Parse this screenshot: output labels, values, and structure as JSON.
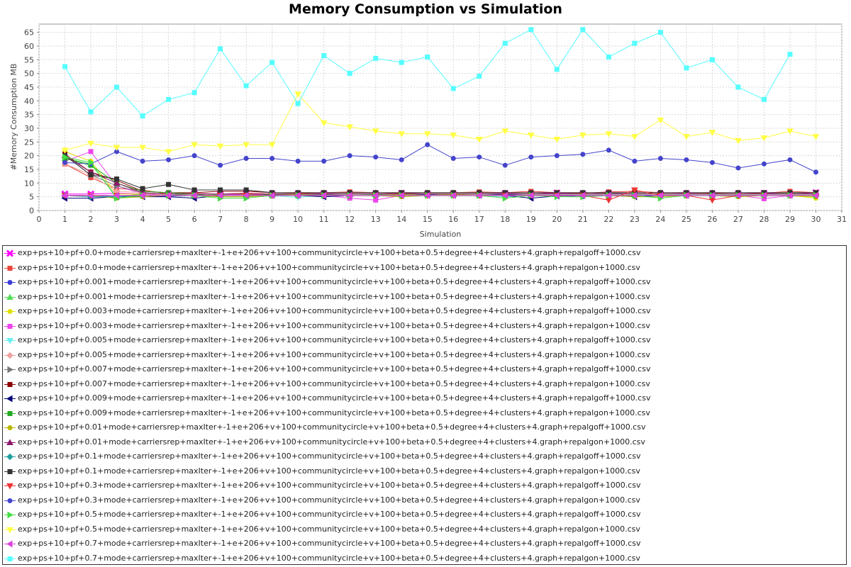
{
  "chart_data": {
    "type": "line",
    "title": "Memory Consumption vs Simulation",
    "xlabel": "Simulation",
    "ylabel": "#Memory Consumption MB",
    "xlim": [
      0,
      31
    ],
    "ylim": [
      0,
      68
    ],
    "xticks": [
      0,
      1,
      2,
      3,
      4,
      5,
      6,
      7,
      8,
      9,
      10,
      11,
      12,
      13,
      14,
      15,
      16,
      17,
      18,
      19,
      20,
      21,
      22,
      23,
      24,
      25,
      26,
      27,
      28,
      29,
      30,
      31
    ],
    "yticks": [
      0,
      5,
      10,
      15,
      20,
      25,
      30,
      35,
      40,
      45,
      50,
      55,
      60,
      65
    ],
    "grid": true,
    "legend_position": "bottom",
    "x": [
      1,
      2,
      3,
      4,
      5,
      6,
      7,
      8,
      9,
      10,
      11,
      12,
      13,
      14,
      15,
      16,
      17,
      18,
      19,
      20,
      21,
      22,
      23,
      24,
      25,
      26,
      27,
      28,
      29,
      30
    ],
    "series": [
      {
        "name": "exp+ps+10+pf+0.0+mode+carriersrep+maxIter+-1+e+206+v+100+communitycircle+v+100+beta+0.5+degree+4+clusters+4.graph+repalgoff+1000.csv",
        "color": "#ff00ff",
        "marker": "x",
        "values": [
          6,
          6,
          6.3,
          6,
          6,
          6.2,
          6,
          6.3,
          6,
          6,
          6.2,
          6,
          6,
          6.3,
          6,
          6,
          6,
          6.2,
          6,
          6.4,
          6,
          6.3,
          6,
          6,
          6.2,
          6,
          6,
          6.3,
          6,
          6.5
        ]
      },
      {
        "name": "exp+ps+10+pf+0.0+mode+carriersrep+maxIter+-1+e+206+v+100+communitycircle+v+100+beta+0.5+degree+4+clusters+4.graph+repalgon+1000.csv",
        "color": "#e8453c",
        "marker": "square",
        "values": [
          17,
          12,
          8,
          7.5,
          6,
          6.2,
          6,
          6.3,
          6,
          6.2,
          6.5,
          6.8,
          6.5,
          6.3,
          6.5,
          6.5,
          6.8,
          6.5,
          7,
          6.5,
          6.3,
          6.8,
          7,
          6.5,
          6.5,
          6.3,
          6.5,
          6.3,
          7,
          6.5
        ]
      },
      {
        "name": "exp+ps+10+pf+0.001+mode+carriersrep+maxIter+-1+e+206+v+100+communitycircle+v+100+beta+0.5+degree+4+clusters+4.graph+repalgoff+1000.csv",
        "color": "#3c3cd8",
        "marker": "circle",
        "values": [
          5.5,
          5.5,
          5,
          5,
          5.2,
          5.5,
          5.5,
          5.5,
          5.3,
          5.5,
          5,
          5.5,
          5.5,
          5.5,
          5.8,
          5.5,
          5.5,
          5.8,
          5.5,
          5.5,
          5,
          5.5,
          5.5,
          5.5,
          5.5,
          5.5,
          5.5,
          5.5,
          5.5,
          5.5
        ]
      },
      {
        "name": "exp+ps+10+pf+0.001+mode+carriersrep+maxIter+-1+e+206+v+100+communitycircle+v+100+beta+0.5+degree+4+clusters+4.graph+repalgon+1000.csv",
        "color": "#55dd55",
        "marker": "triangle-up",
        "values": [
          19,
          17,
          5,
          6,
          6,
          5.5,
          5.8,
          5.5,
          5.8,
          6,
          6,
          6,
          5.8,
          6,
          6,
          6,
          6,
          6,
          6,
          6,
          6,
          6.2,
          6,
          6,
          6,
          6,
          6,
          6,
          6.2,
          6
        ]
      },
      {
        "name": "exp+ps+10+pf+0.003+mode+carriersrep+maxIter+-1+e+206+v+100+communitycircle+v+100+beta+0.5+degree+4+clusters+4.graph+repalgoff+1000.csv",
        "color": "#e0e000",
        "marker": "circle",
        "values": [
          21.5,
          18,
          6,
          6,
          5.5,
          5.5,
          5.5,
          5.8,
          5.5,
          5.8,
          5.5,
          5.5,
          5.5,
          5.8,
          5.5,
          5.8,
          5.5,
          5.5,
          5.5,
          5.5,
          5.5,
          5.5,
          5.2,
          5.5,
          5.5,
          5.5,
          5.3,
          5.5,
          5.5,
          4.5
        ]
      },
      {
        "name": "exp+ps+10+pf+0.003+mode+carriersrep+maxIter+-1+e+206+v+100+communitycircle+v+100+beta+0.5+degree+4+clusters+4.graph+repalgon+1000.csv",
        "color": "#ee44ee",
        "marker": "square",
        "values": [
          18,
          21.5,
          9,
          6,
          5.5,
          5.5,
          5.5,
          6,
          5.5,
          5.5,
          5.5,
          4.5,
          3.8,
          5.5,
          5.5,
          5.5,
          5.5,
          5.5,
          5.5,
          5.5,
          5.5,
          5.5,
          5.5,
          5.5,
          5.5,
          5.5,
          5.5,
          4.3,
          5.5,
          5.5
        ]
      },
      {
        "name": "exp+ps+10+pf+0.005+mode+carriersrep+maxIter+-1+e+206+v+100+communitycircle+v+100+beta+0.5+degree+4+clusters+4.graph+repalgoff+1000.csv",
        "color": "#66eeee",
        "marker": "triangle-down",
        "values": [
          5.5,
          5.5,
          5.3,
          5.5,
          5.5,
          5.5,
          5.5,
          5.5,
          5.5,
          4.8,
          5.5,
          5.5,
          5.5,
          5.5,
          5.5,
          5.5,
          5.5,
          5,
          5.5,
          5.5,
          5.5,
          5.5,
          5.5,
          5.5,
          5.5,
          5.5,
          5.5,
          5.5,
          5.5,
          5.5
        ]
      },
      {
        "name": "exp+ps+10+pf+0.005+mode+carriersrep+maxIter+-1+e+206+v+100+communitycircle+v+100+beta+0.5+degree+4+clusters+4.graph+repalgon+1000.csv",
        "color": "#f0a0a0",
        "marker": "diamond",
        "values": [
          17,
          13,
          7,
          6.5,
          5.5,
          5.5,
          5.5,
          5.5,
          5.5,
          5.5,
          5.5,
          5.5,
          5.5,
          5.5,
          5.5,
          5.5,
          5.5,
          5.5,
          5.5,
          5.5,
          5.5,
          5.5,
          5.5,
          5.5,
          5.5,
          5.5,
          5.5,
          5.5,
          5.5,
          5.5
        ]
      },
      {
        "name": "exp+ps+10+pf+0.007+mode+carriersrep+maxIter+-1+e+206+v+100+communitycircle+v+100+beta+0.5+degree+4+clusters+4.graph+repalgoff+1000.csv",
        "color": "#777777",
        "marker": "triangle-right",
        "values": [
          20,
          13,
          9,
          6.5,
          6,
          6,
          6,
          6,
          5.8,
          6,
          5.8,
          6,
          6,
          6,
          6,
          6,
          6,
          6,
          6,
          6,
          6,
          6,
          6,
          6,
          6,
          6,
          6,
          6,
          6,
          6
        ]
      },
      {
        "name": "exp+ps+10+pf+0.007+mode+carriersrep+maxIter+-1+e+206+v+100+communitycircle+v+100+beta+0.5+degree+4+clusters+4.graph+repalgon+1000.csv",
        "color": "#8b0000",
        "marker": "square",
        "values": [
          20.5,
          14,
          11,
          7,
          6.5,
          6.5,
          7,
          7,
          6.5,
          6.5,
          6.5,
          6.5,
          6.5,
          6.5,
          6.5,
          6.5,
          6.5,
          6.5,
          6.5,
          6.5,
          6.5,
          6.5,
          6.5,
          6.5,
          6.5,
          6.5,
          6.5,
          6.5,
          6.5,
          6.5
        ]
      },
      {
        "name": "exp+ps+10+pf+0.009+mode+carriersrep+maxIter+-1+e+206+v+100+communitycircle+v+100+beta+0.5+degree+4+clusters+4.graph+repalgoff+1000.csv",
        "color": "#00007a",
        "marker": "triangle-left",
        "values": [
          4.5,
          4.5,
          5,
          5,
          5,
          4.5,
          5.5,
          5.5,
          5.5,
          5.5,
          5,
          5.5,
          5.5,
          5.5,
          5.5,
          5.5,
          5.5,
          5.5,
          4.5,
          5.3,
          5.5,
          5.5,
          5,
          5.5,
          5.5,
          5.5,
          5.5,
          5.5,
          5.5,
          5.5
        ]
      },
      {
        "name": "exp+ps+10+pf+0.009+mode+carriersrep+maxIter+-1+e+206+v+100+communitycircle+v+100+beta+0.5+degree+4+clusters+4.graph+repalgon+1000.csv",
        "color": "#22aa22",
        "marker": "square",
        "values": [
          19,
          16.5,
          10,
          7,
          6.5,
          6,
          5,
          5,
          6,
          6,
          6,
          6,
          6,
          6,
          6,
          6,
          6,
          6,
          6,
          6,
          6,
          6,
          6,
          6,
          6,
          6,
          6,
          6,
          6,
          6
        ]
      },
      {
        "name": "exp+ps+10+pf+0.01+mode+carriersrep+maxIter+-1+e+206+v+100+communitycircle+v+100+beta+0.5+degree+4+clusters+4.graph+repalgoff+1000.csv",
        "color": "#b8b800",
        "marker": "circle",
        "values": [
          5.5,
          5.5,
          4.5,
          5,
          5.5,
          5.5,
          5,
          5,
          5.5,
          5.5,
          5.5,
          5.5,
          5.5,
          5,
          5.5,
          5.5,
          5.5,
          5.5,
          5.5,
          5.5,
          5.5,
          5.5,
          5,
          5,
          5.5,
          5.5,
          5,
          5.5,
          5.5,
          5
        ]
      },
      {
        "name": "exp+ps+10+pf+0.01+mode+carriersrep+maxIter+-1+e+206+v+100+communitycircle+v+100+beta+0.5+degree+4+clusters+4.graph+repalgon+1000.csv",
        "color": "#8b1a6b",
        "marker": "triangle-up",
        "values": [
          20,
          14,
          10,
          6.5,
          6,
          6,
          6,
          6,
          6,
          6,
          6,
          6,
          6,
          6,
          6,
          6,
          6,
          6,
          6,
          6,
          6,
          6,
          6,
          6,
          6,
          6,
          6,
          6,
          6,
          6
        ]
      },
      {
        "name": "exp+ps+10+pf+0.1+mode+carriersrep+maxIter+-1+e+206+v+100+communitycircle+v+100+beta+0.5+degree+4+clusters+4.graph+repalgoff+1000.csv",
        "color": "#20a0a0",
        "marker": "diamond",
        "values": [
          5.5,
          5,
          5,
          5.5,
          5.5,
          5.5,
          5.5,
          5.5,
          5.5,
          5.5,
          5.5,
          5.5,
          5.5,
          5.5,
          5.5,
          5.5,
          5.5,
          5.5,
          5.5,
          5.5,
          5.5,
          5.5,
          5.5,
          5.5,
          5.5,
          5.5,
          5.5,
          5.5,
          5.5,
          5.5
        ]
      },
      {
        "name": "exp+ps+10+pf+0.1+mode+carriersrep+maxIter+-1+e+206+v+100+communitycircle+v+100+beta+0.5+degree+4+clusters+4.graph+repalgon+1000.csv",
        "color": "#333333",
        "marker": "square",
        "values": [
          20,
          13,
          11.5,
          8,
          9.5,
          7.5,
          7.5,
          7.5,
          6.5,
          6.5,
          6.5,
          6.5,
          6.5,
          6.5,
          6.5,
          6.5,
          6.5,
          6.5,
          6.5,
          6.5,
          6.5,
          6.5,
          6.5,
          6.5,
          6.5,
          6.5,
          6.5,
          6.5,
          6.5,
          6.5
        ]
      },
      {
        "name": "exp+ps+10+pf+0.3+mode+carriersrep+maxIter+-1+e+206+v+100+communitycircle+v+100+beta+0.5+degree+4+clusters+4.graph+repalgoff+1000.csv",
        "color": "#ee3333",
        "marker": "triangle-down",
        "values": [
          5.5,
          5.5,
          5.5,
          5.5,
          5.5,
          5.5,
          5.5,
          5.5,
          5.5,
          5.5,
          5.5,
          5.5,
          5.5,
          5.5,
          5.5,
          5.5,
          5.5,
          5.5,
          5.5,
          5.5,
          5.5,
          3.8,
          7.5,
          5.5,
          5.5,
          3.8,
          5.5,
          5.5,
          5.5,
          5.5
        ]
      },
      {
        "name": "exp+ps+10+pf+0.3+mode+carriersrep+maxIter+-1+e+206+v+100+communitycircle+v+100+beta+0.5+degree+4+clusters+4.graph+repalgon+1000.csv",
        "color": "#4444cc",
        "marker": "circle",
        "values": [
          17.5,
          17,
          21.5,
          18,
          18.5,
          20,
          16.5,
          19,
          19,
          18,
          18,
          20,
          19.5,
          18.5,
          24,
          19,
          19.5,
          16.5,
          19.5,
          20,
          20.5,
          22,
          18,
          19,
          18.5,
          17.5,
          15.5,
          17,
          18.5,
          14
        ]
      },
      {
        "name": "exp+ps+10+pf+0.5+mode+carriersrep+maxIter+-1+e+206+v+100+communitycircle+v+100+beta+0.5+degree+4+clusters+4.graph+repalgoff+1000.csv",
        "color": "#44dd44",
        "marker": "triangle-right",
        "values": [
          19.5,
          17.5,
          4.5,
          5.5,
          5.5,
          5.5,
          4.5,
          4.5,
          5.5,
          5.5,
          5.5,
          5.5,
          5.5,
          5.5,
          5.5,
          5.5,
          5.5,
          4.5,
          5.5,
          5,
          5,
          5.5,
          5.5,
          4.5,
          5.5,
          5.5,
          5.5,
          5.5,
          5.5,
          5.5
        ]
      },
      {
        "name": "exp+ps+10+pf+0.5+mode+carriersrep+maxIter+-1+e+206+v+100+communitycircle+v+100+beta+0.5+degree+4+clusters+4.graph+repalgon+1000.csv",
        "color": "#ffff44",
        "marker": "triangle-down",
        "values": [
          22,
          24.5,
          23,
          23,
          21.5,
          24,
          23.5,
          24,
          24,
          42.5,
          32,
          30.5,
          29,
          28,
          28,
          27.5,
          26,
          29,
          27.5,
          26,
          27.5,
          28,
          27,
          33,
          27,
          28.5,
          25.5,
          26.5,
          29,
          27
        ]
      },
      {
        "name": "exp+ps+10+pf+0.7+mode+carriersrep+maxIter+-1+e+206+v+100+communitycircle+v+100+beta+0.5+degree+4+clusters+4.graph+repalgoff+1000.csv",
        "color": "#dd44dd",
        "marker": "triangle-left",
        "values": [
          5.5,
          5.5,
          5.5,
          5.5,
          5.5,
          5.5,
          5.5,
          5.5,
          5.5,
          5.5,
          5.5,
          5.5,
          5.5,
          5.5,
          5.5,
          5.5,
          5.5,
          5.5,
          5.5,
          5.5,
          5.5,
          5.5,
          5.5,
          5.5,
          5.5,
          5.5,
          5.5,
          5.5,
          5.5,
          5.5
        ]
      },
      {
        "name": "exp+ps+10+pf+0.7+mode+carriersrep+maxIter+-1+e+206+v+100+communitycircle+v+100+beta+0.5+degree+4+clusters+4.graph+repalgon+1000.csv",
        "color": "#55ffff",
        "marker": "square",
        "values": [
          52.5,
          36,
          45,
          34.5,
          40.5,
          43,
          59,
          45.5,
          54,
          39,
          56.5,
          50,
          55.5,
          54,
          56,
          44.5,
          49,
          61,
          66,
          51.5,
          66,
          56,
          61,
          65,
          52,
          55,
          45,
          40.5,
          57,
          null
        ]
      }
    ]
  }
}
